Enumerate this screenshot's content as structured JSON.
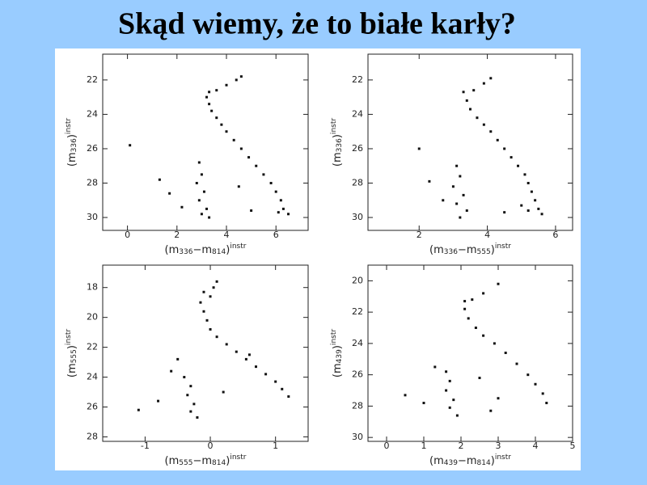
{
  "title": "Skąd wiemy, że to białe karły?",
  "chart_data": [
    {
      "type": "scatter",
      "color": "#111111",
      "xlabel": [
        {
          "text": "(m"
        },
        {
          "text": "336",
          "sub": true
        },
        {
          "text": "−m"
        },
        {
          "text": "814",
          "sub": true
        },
        {
          "text": ")"
        },
        {
          "text": "instr",
          "sup": true
        }
      ],
      "ylabel": [
        {
          "text": "(m"
        },
        {
          "text": "336",
          "sub": true
        },
        {
          "text": ")"
        },
        {
          "text": "instr",
          "sup": true
        }
      ],
      "xlim": [
        -1,
        7.3
      ],
      "ylim": [
        30.75,
        20.5
      ],
      "xticks": [
        0,
        2,
        4,
        6
      ],
      "yticks": [
        22,
        24,
        26,
        28,
        30
      ],
      "x": [
        3.3,
        3.2,
        3.3,
        3.4,
        3.6,
        3.8,
        4.0,
        4.3,
        4.6,
        4.9,
        5.2,
        5.5,
        5.8,
        6.0,
        6.2,
        6.3,
        6.5,
        6.1,
        3.6,
        4.0,
        4.4,
        4.6,
        2.9,
        3.0,
        2.8,
        3.1,
        2.9,
        3.2,
        3.0,
        3.3,
        0.1,
        1.3,
        1.7,
        2.2,
        5.0,
        4.5
      ],
      "y": [
        22.7,
        23.0,
        23.4,
        23.8,
        24.2,
        24.6,
        25.0,
        25.5,
        26.0,
        26.5,
        27.0,
        27.5,
        28.0,
        28.5,
        29.0,
        29.5,
        29.8,
        29.7,
        22.6,
        22.3,
        22.0,
        21.8,
        26.8,
        27.5,
        28.0,
        28.5,
        29.0,
        29.5,
        29.8,
        30.0,
        25.8,
        27.8,
        28.6,
        29.4,
        29.6,
        28.2
      ]
    },
    {
      "type": "scatter",
      "color": "#111111",
      "xlabel": [
        {
          "text": "(m"
        },
        {
          "text": "336",
          "sub": true
        },
        {
          "text": "−m"
        },
        {
          "text": "555",
          "sub": true
        },
        {
          "text": ")"
        },
        {
          "text": "instr",
          "sup": true
        }
      ],
      "ylabel": [
        {
          "text": "(m"
        },
        {
          "text": "336",
          "sub": true
        },
        {
          "text": ")"
        },
        {
          "text": "instr",
          "sup": true
        }
      ],
      "xlim": [
        0.5,
        6.5
      ],
      "ylim": [
        30.75,
        20.5
      ],
      "xticks": [
        2,
        4,
        6
      ],
      "yticks": [
        22,
        24,
        26,
        28,
        30
      ],
      "x": [
        3.3,
        3.4,
        3.5,
        3.7,
        3.9,
        4.1,
        4.3,
        4.5,
        4.7,
        4.9,
        5.1,
        5.2,
        5.3,
        5.4,
        5.5,
        5.6,
        5.2,
        3.6,
        3.9,
        4.1,
        3.1,
        3.2,
        3.0,
        3.3,
        3.1,
        3.4,
        3.2,
        2.0,
        2.3,
        2.7,
        4.5,
        5.0
      ],
      "y": [
        22.7,
        23.2,
        23.7,
        24.2,
        24.6,
        25.0,
        25.5,
        26.0,
        26.5,
        27.0,
        27.5,
        28.0,
        28.5,
        29.0,
        29.5,
        29.8,
        29.6,
        22.6,
        22.2,
        21.9,
        27.0,
        27.6,
        28.2,
        28.7,
        29.2,
        29.6,
        30.0,
        26.0,
        27.9,
        29.0,
        29.7,
        29.3
      ]
    },
    {
      "type": "scatter",
      "color": "#111111",
      "xlabel": [
        {
          "text": "(m"
        },
        {
          "text": "555",
          "sub": true
        },
        {
          "text": "−m"
        },
        {
          "text": "814",
          "sub": true
        },
        {
          "text": ")"
        },
        {
          "text": "instr",
          "sup": true
        }
      ],
      "ylabel": [
        {
          "text": "(m"
        },
        {
          "text": "555",
          "sub": true
        },
        {
          "text": ")"
        },
        {
          "text": "instr",
          "sup": true
        }
      ],
      "xlim": [
        -1.65,
        1.5
      ],
      "ylim": [
        28.3,
        16.5
      ],
      "xticks": [
        -1,
        0,
        1
      ],
      "yticks": [
        18,
        20,
        22,
        24,
        26,
        28
      ],
      "x": [
        -0.15,
        -0.1,
        -0.05,
        0.0,
        0.1,
        0.25,
        0.4,
        0.55,
        0.7,
        0.85,
        1.0,
        1.1,
        0.6,
        0.0,
        0.05,
        0.1,
        -0.1,
        -0.4,
        -0.3,
        -0.35,
        -0.25,
        -0.3,
        -0.2,
        -1.1,
        -0.8,
        -0.6,
        0.2,
        1.2,
        -0.5
      ],
      "y": [
        19.0,
        19.6,
        20.2,
        20.8,
        21.3,
        21.8,
        22.3,
        22.8,
        23.3,
        23.8,
        24.3,
        24.8,
        22.5,
        18.6,
        18.0,
        17.6,
        18.3,
        24.0,
        24.6,
        25.2,
        25.8,
        26.3,
        26.7,
        26.2,
        25.6,
        23.6,
        25.0,
        25.3,
        22.8
      ]
    },
    {
      "type": "scatter",
      "color": "#111111",
      "xlabel": [
        {
          "text": "(m"
        },
        {
          "text": "439",
          "sub": true
        },
        {
          "text": "−m"
        },
        {
          "text": "814",
          "sub": true
        },
        {
          "text": ")"
        },
        {
          "text": "instr",
          "sup": true
        }
      ],
      "ylabel": [
        {
          "text": "(m"
        },
        {
          "text": "439",
          "sub": true
        },
        {
          "text": ")"
        },
        {
          "text": "instr",
          "sup": true
        }
      ],
      "xlim": [
        -0.5,
        5
      ],
      "ylim": [
        30.25,
        19
      ],
      "xticks": [
        0,
        1,
        2,
        3,
        4,
        5
      ],
      "yticks": [
        20,
        22,
        24,
        26,
        28,
        30
      ],
      "x": [
        2.1,
        2.1,
        2.2,
        2.4,
        2.6,
        2.9,
        3.2,
        3.5,
        3.8,
        4.0,
        4.2,
        4.3,
        2.3,
        2.6,
        3.0,
        1.6,
        1.7,
        1.6,
        1.8,
        1.7,
        1.9,
        0.5,
        1.0,
        1.3,
        2.5,
        3.0,
        2.8
      ],
      "y": [
        21.3,
        21.8,
        22.4,
        23.0,
        23.5,
        24.0,
        24.6,
        25.3,
        26.0,
        26.6,
        27.2,
        27.8,
        21.2,
        20.8,
        20.2,
        25.8,
        26.4,
        27.0,
        27.6,
        28.1,
        28.6,
        27.3,
        27.8,
        25.5,
        26.2,
        27.5,
        28.3
      ]
    }
  ]
}
